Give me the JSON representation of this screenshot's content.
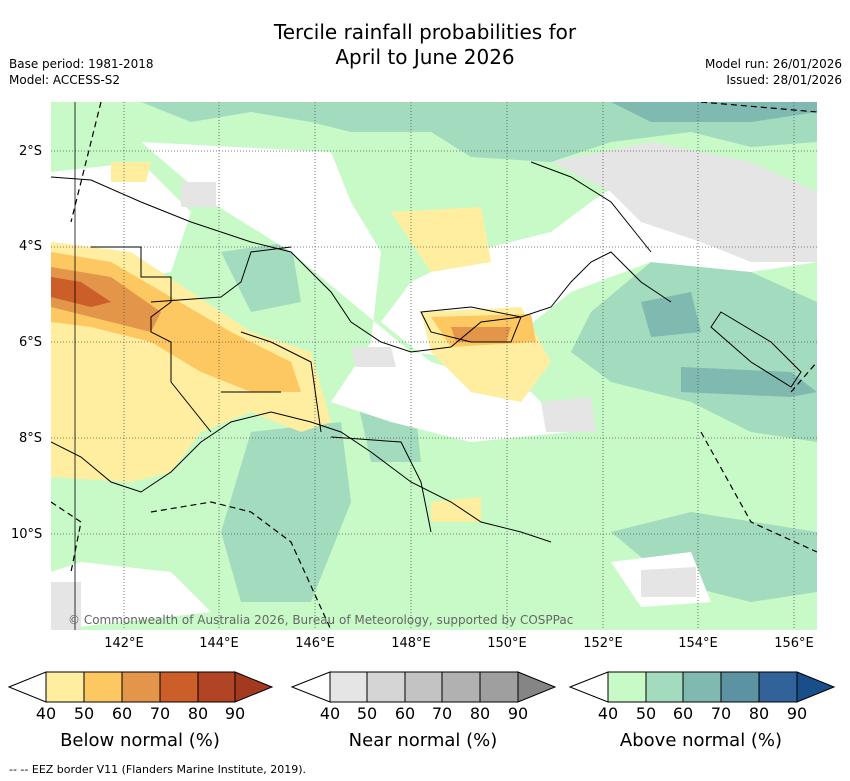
{
  "title_line1": "Tercile rainfall probabilities for",
  "title_line2": "April to June 2026",
  "base_period": "Base period: 1981-2018",
  "model": "Model: ACCESS-S2",
  "model_run": "Model run: 26/01/2026",
  "issued": "Issued: 28/01/2026",
  "copyright": "© Commonwealth of Australia 2026, Bureau of Meteorology, supported by COSPPac",
  "lat_labels": [
    "2°S",
    "4°S",
    "6°S",
    "8°S",
    "10°S"
  ],
  "lon_labels": [
    "142°E",
    "144°E",
    "146°E",
    "148°E",
    "150°E",
    "152°E",
    "154°E",
    "156°E"
  ],
  "colorbars": [
    {
      "title": "Below normal (%)",
      "ticks": [
        "40",
        "50",
        "60",
        "70",
        "80",
        "90"
      ],
      "colors": [
        "#ffeda0",
        "#fdc862",
        "#e3954a",
        "#cc5e2a",
        "#b04424",
        "#a33a20"
      ]
    },
    {
      "title": "Near normal (%)",
      "ticks": [
        "40",
        "50",
        "60",
        "70",
        "80",
        "90"
      ],
      "colors": [
        "#e5e5e5",
        "#d5d5d5",
        "#c3c3c3",
        "#b1b1b1",
        "#9f9f9f",
        "#858585"
      ]
    },
    {
      "title": "Above normal (%)",
      "ticks": [
        "40",
        "50",
        "60",
        "70",
        "80",
        "90"
      ],
      "colors": [
        "#c8fac8",
        "#a2dbbd",
        "#7fb9b0",
        "#5b93a2",
        "#31629a",
        "#184e8a"
      ]
    }
  ],
  "footer": "-- -- EEZ border V11 (Flanders Marine Institute, 2019)."
}
